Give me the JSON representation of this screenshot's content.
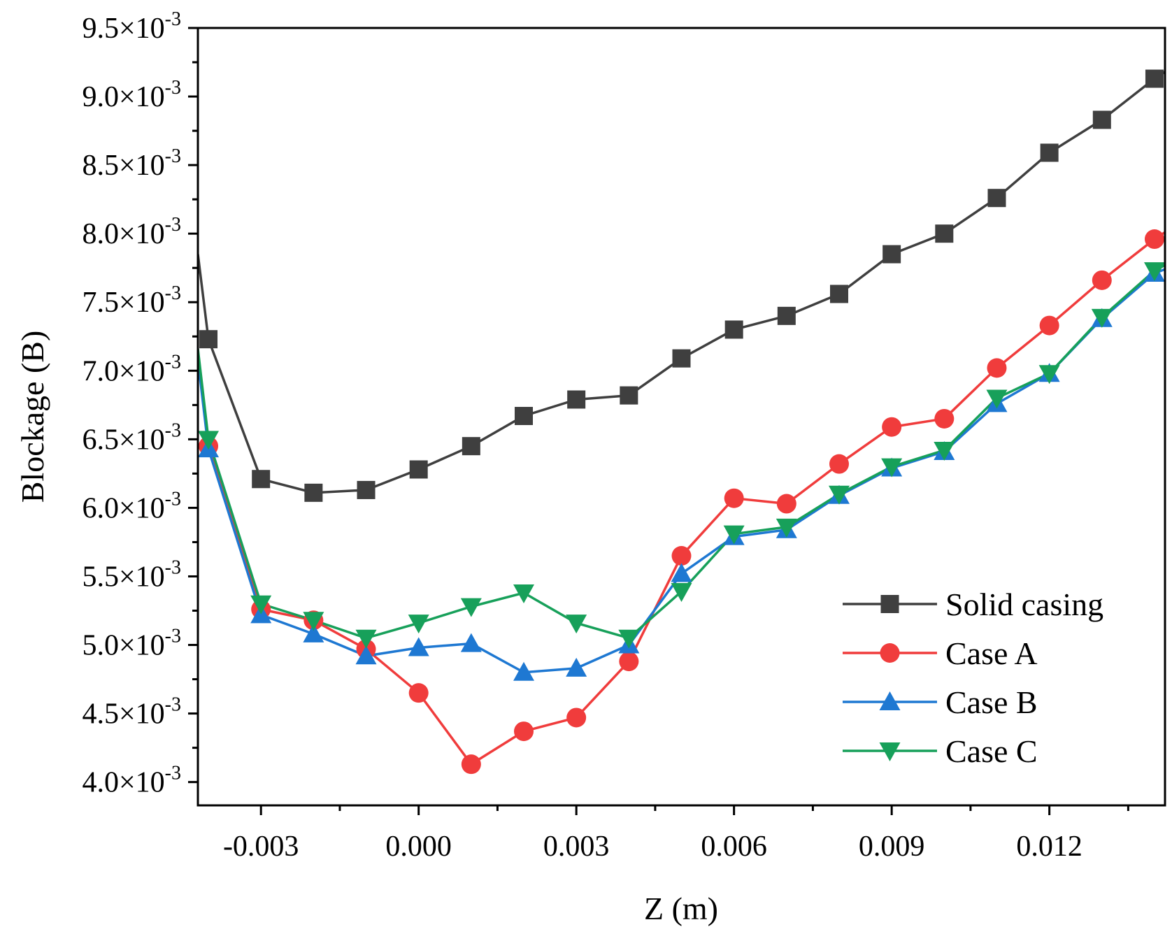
{
  "chart_data": {
    "type": "line",
    "title": "",
    "xlabel": "Z (m)",
    "ylabel": "Blockage (B)",
    "xlim": [
      -0.0042,
      0.0142
    ],
    "ylim": [
      0.00383,
      0.0095
    ],
    "xticks": [
      {
        "value": -0.003,
        "label": "-0.003"
      },
      {
        "value": 0.0,
        "label": "0.000"
      },
      {
        "value": 0.003,
        "label": "0.003"
      },
      {
        "value": 0.006,
        "label": "0.006"
      },
      {
        "value": 0.009,
        "label": "0.009"
      },
      {
        "value": 0.012,
        "label": "0.012"
      }
    ],
    "yticks": [
      {
        "value": 0.004,
        "mantissa": "4.0×10",
        "exp": "-3"
      },
      {
        "value": 0.0045,
        "mantissa": "4.5×10",
        "exp": "-3"
      },
      {
        "value": 0.005,
        "mantissa": "5.0×10",
        "exp": "-3"
      },
      {
        "value": 0.0055,
        "mantissa": "5.5×10",
        "exp": "-3"
      },
      {
        "value": 0.006,
        "mantissa": "6.0×10",
        "exp": "-3"
      },
      {
        "value": 0.0065,
        "mantissa": "6.5×10",
        "exp": "-3"
      },
      {
        "value": 0.007,
        "mantissa": "7.0×10",
        "exp": "-3"
      },
      {
        "value": 0.0075,
        "mantissa": "7.5×10",
        "exp": "-3"
      },
      {
        "value": 0.008,
        "mantissa": "8.0×10",
        "exp": "-3"
      },
      {
        "value": 0.0085,
        "mantissa": "8.5×10",
        "exp": "-3"
      },
      {
        "value": 0.009,
        "mantissa": "9.0×10",
        "exp": "-3"
      },
      {
        "value": 0.0095,
        "mantissa": "9.5×10",
        "exp": "-3"
      }
    ],
    "legend_position": "bottom-right",
    "series": [
      {
        "name": "Solid casing",
        "color": "#3f3f3f",
        "marker": "square",
        "line_start": [
          -0.0042,
          0.00785
        ],
        "line_end": [
          0.0142,
          0.00918
        ],
        "x": [
          -0.004,
          -0.003,
          -0.002,
          -0.001,
          0.0,
          0.001,
          0.002,
          0.003,
          0.004,
          0.005,
          0.006,
          0.007,
          0.008,
          0.009,
          0.01,
          0.011,
          0.012,
          0.013,
          0.014
        ],
        "values": [
          0.00723,
          0.00621,
          0.00611,
          0.00613,
          0.00628,
          0.00645,
          0.00667,
          0.00679,
          0.00682,
          0.00709,
          0.0073,
          0.0074,
          0.00756,
          0.00785,
          0.008,
          0.00826,
          0.00859,
          0.00883,
          0.00913
        ]
      },
      {
        "name": "Case A",
        "color": "#f03c3c",
        "marker": "circle",
        "line_start": [
          -0.0042,
          0.0071
        ],
        "line_end": [
          0.0142,
          0.00801
        ],
        "x": [
          -0.004,
          -0.003,
          -0.002,
          -0.001,
          0.0,
          0.001,
          0.002,
          0.003,
          0.004,
          0.005,
          0.006,
          0.007,
          0.008,
          0.009,
          0.01,
          0.011,
          0.012,
          0.013,
          0.014
        ],
        "values": [
          0.00645,
          0.00526,
          0.00518,
          0.00497,
          0.00465,
          0.00413,
          0.00437,
          0.00447,
          0.00488,
          0.00565,
          0.00607,
          0.00603,
          0.00632,
          0.00659,
          0.00665,
          0.00702,
          0.00733,
          0.00766,
          0.00796
        ]
      },
      {
        "name": "Case B",
        "color": "#1e78d2",
        "marker": "triangle-up",
        "line_start": [
          -0.0042,
          0.00708
        ],
        "line_end": [
          0.0142,
          0.00774
        ],
        "x": [
          -0.004,
          -0.003,
          -0.002,
          -0.001,
          0.0,
          0.001,
          0.002,
          0.003,
          0.004,
          0.005,
          0.006,
          0.007,
          0.008,
          0.009,
          0.01,
          0.011,
          0.012,
          0.013,
          0.014
        ],
        "values": [
          0.00643,
          0.00522,
          0.00508,
          0.00492,
          0.00498,
          0.00501,
          0.0048,
          0.00483,
          0.005,
          0.00552,
          0.00579,
          0.00584,
          0.00609,
          0.00629,
          0.00641,
          0.00676,
          0.00698,
          0.00738,
          0.00771
        ]
      },
      {
        "name": "Case C",
        "color": "#17a05a",
        "marker": "triangle-down",
        "line_start": [
          -0.0042,
          0.00716
        ],
        "line_end": [
          0.0142,
          0.00777
        ],
        "x": [
          -0.004,
          -0.003,
          -0.002,
          -0.001,
          0.0,
          0.001,
          0.002,
          0.003,
          0.004,
          0.005,
          0.006,
          0.007,
          0.008,
          0.009,
          0.01,
          0.011,
          0.012,
          0.013,
          0.014
        ],
        "values": [
          0.0065,
          0.0053,
          0.00518,
          0.00505,
          0.00516,
          0.00528,
          0.00538,
          0.00516,
          0.00505,
          0.00539,
          0.00581,
          0.00586,
          0.0061,
          0.0063,
          0.00642,
          0.0068,
          0.00698,
          0.00739,
          0.00773
        ]
      }
    ]
  }
}
